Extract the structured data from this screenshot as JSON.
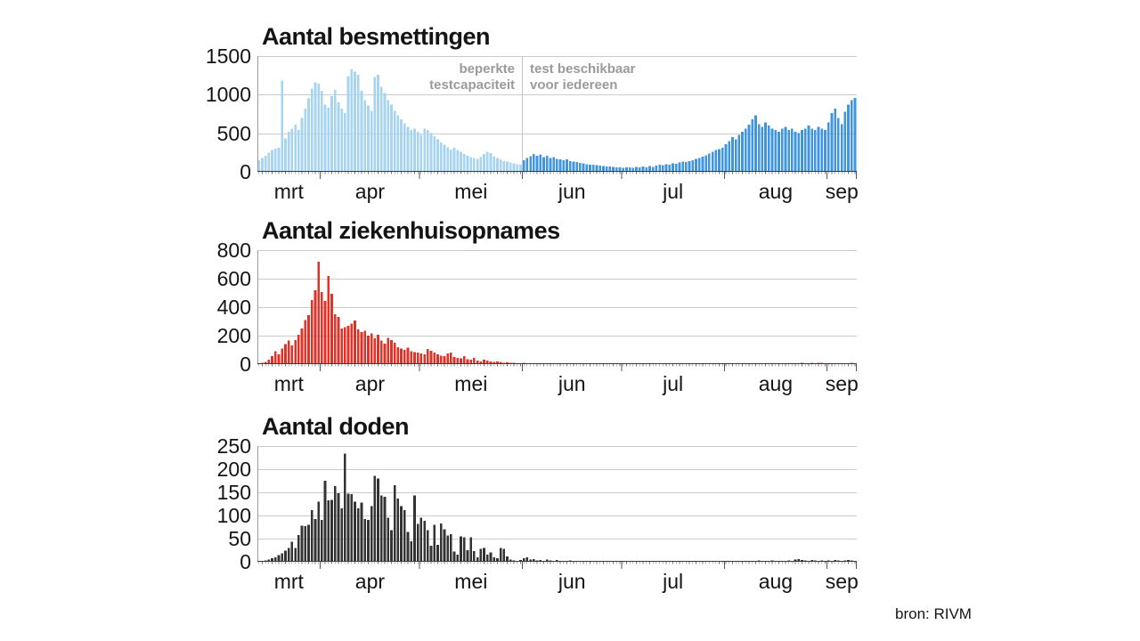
{
  "source_label": "bron: RIVM",
  "months": [
    {
      "label": "mrt",
      "days": 19
    },
    {
      "label": "apr",
      "days": 30
    },
    {
      "label": "mei",
      "days": 31
    },
    {
      "label": "jun",
      "days": 30
    },
    {
      "label": "jul",
      "days": 31
    },
    {
      "label": "aug",
      "days": 31
    },
    {
      "label": "sep",
      "days": 9
    }
  ],
  "colors": {
    "grid": "#cccccc",
    "axis_left": "#9b9b9b",
    "baseline": "#3a3a3a",
    "day_tick": "#777777",
    "month_tick": "#555555",
    "divider": "#c4c4c4",
    "annotation_text": "#9a9a9a"
  },
  "chart_data": [
    {
      "type": "bar",
      "title": "Aantal besmettingen",
      "ylim": [
        0,
        1500
      ],
      "ystep": 500,
      "yticks": [
        0,
        500,
        1000,
        1500
      ],
      "grid": true,
      "bar_color_light": "#a6d4f1",
      "bar_color_dark": "#4095df",
      "color_split_index": 80,
      "annotations": {
        "left_lines": [
          "beperkte",
          "testcapaciteit"
        ],
        "right_lines": [
          "test beschikbaar",
          "voor iedereen"
        ],
        "divider_index": 80
      },
      "values": [
        150,
        180,
        210,
        250,
        280,
        300,
        310,
        1180,
        430,
        520,
        560,
        610,
        540,
        700,
        820,
        950,
        1080,
        1160,
        1140,
        1050,
        870,
        830,
        980,
        1060,
        900,
        820,
        760,
        1240,
        1335,
        1300,
        1260,
        1050,
        930,
        860,
        790,
        1230,
        1260,
        1100,
        1020,
        930,
        870,
        790,
        730,
        680,
        630,
        580,
        540,
        560,
        520,
        480,
        560,
        540,
        500,
        460,
        420,
        380,
        350,
        320,
        290,
        310,
        280,
        260,
        230,
        210,
        190,
        180,
        170,
        190,
        230,
        260,
        240,
        200,
        180,
        160,
        140,
        130,
        120,
        110,
        100,
        95,
        150,
        180,
        200,
        230,
        210,
        225,
        190,
        205,
        180,
        190,
        170,
        160,
        150,
        160,
        140,
        130,
        125,
        115,
        110,
        100,
        95,
        90,
        85,
        80,
        75,
        70,
        68,
        65,
        60,
        55,
        50,
        55,
        60,
        50,
        65,
        55,
        70,
        60,
        75,
        65,
        80,
        90,
        85,
        100,
        95,
        110,
        105,
        120,
        130,
        125,
        140,
        150,
        165,
        180,
        195,
        215,
        235,
        260,
        280,
        295,
        310,
        360,
        400,
        450,
        420,
        480,
        520,
        560,
        610,
        680,
        730,
        620,
        580,
        640,
        600,
        560,
        540,
        520,
        560,
        580,
        540,
        560,
        520,
        500,
        540,
        560,
        600,
        560,
        540,
        580,
        560,
        540,
        640,
        760,
        820,
        700,
        620,
        780,
        870,
        930,
        960
      ]
    },
    {
      "type": "bar",
      "title": "Aantal ziekenhuisopnames",
      "ylim": [
        0,
        800
      ],
      "ystep": 200,
      "yticks": [
        0,
        200,
        400,
        600,
        800
      ],
      "grid": true,
      "bar_color": "#e23228",
      "values": [
        5,
        10,
        15,
        30,
        55,
        90,
        70,
        110,
        140,
        165,
        130,
        170,
        205,
        250,
        310,
        345,
        450,
        520,
        720,
        505,
        445,
        620,
        495,
        350,
        330,
        250,
        260,
        270,
        285,
        305,
        245,
        225,
        235,
        200,
        215,
        180,
        205,
        165,
        145,
        185,
        170,
        150,
        120,
        110,
        100,
        115,
        90,
        85,
        80,
        75,
        70,
        105,
        95,
        80,
        70,
        60,
        55,
        75,
        80,
        50,
        45,
        40,
        55,
        35,
        30,
        45,
        25,
        20,
        30,
        25,
        20,
        15,
        20,
        15,
        10,
        12,
        8,
        10,
        6,
        5,
        8,
        6,
        5,
        7,
        4,
        5,
        3,
        4,
        5,
        3,
        4,
        2,
        3,
        4,
        2,
        3,
        2,
        3,
        2,
        2,
        3,
        2,
        2,
        3,
        2,
        2,
        3,
        2,
        2,
        2,
        2,
        3,
        2,
        2,
        3,
        2,
        3,
        2,
        2,
        3,
        2,
        2,
        3,
        2,
        3,
        2,
        2,
        3,
        2,
        3,
        2,
        2,
        3,
        3,
        2,
        3,
        2,
        3,
        3,
        2,
        3,
        3,
        2,
        3,
        4,
        3,
        4,
        3,
        5,
        4,
        3,
        5,
        4,
        6,
        5,
        4,
        6,
        5,
        4,
        6,
        5,
        7,
        5,
        6,
        8,
        6,
        5,
        8,
        6,
        9,
        8,
        6,
        4,
        3,
        6,
        5,
        7,
        5,
        6,
        8,
        6
      ]
    },
    {
      "type": "bar",
      "title": "Aantal doden",
      "ylim": [
        0,
        250
      ],
      "ystep": 50,
      "yticks": [
        0,
        50,
        100,
        150,
        200,
        250
      ],
      "grid": true,
      "bar_color": "#333333",
      "values": [
        1,
        2,
        3,
        5,
        8,
        10,
        14,
        18,
        24,
        30,
        43,
        30,
        58,
        78,
        77,
        80,
        112,
        92,
        130,
        90,
        175,
        133,
        134,
        163,
        148,
        115,
        234,
        147,
        146,
        130,
        115,
        128,
        92,
        90,
        120,
        186,
        180,
        143,
        140,
        95,
        68,
        165,
        137,
        120,
        112,
        64,
        44,
        143,
        82,
        95,
        88,
        68,
        35,
        80,
        37,
        83,
        70,
        57,
        60,
        22,
        15,
        55,
        53,
        25,
        53,
        23,
        10,
        28,
        30,
        15,
        20,
        10,
        8,
        30,
        28,
        12,
        5,
        3,
        2,
        4,
        8,
        10,
        5,
        6,
        3,
        4,
        2,
        5,
        3,
        2,
        4,
        2,
        1,
        2,
        3,
        1,
        2,
        1,
        2,
        1,
        1,
        2,
        1,
        1,
        2,
        1,
        1,
        1,
        2,
        1,
        1,
        2,
        1,
        1,
        2,
        1,
        1,
        1,
        2,
        1,
        1,
        2,
        1,
        1,
        1,
        2,
        1,
        1,
        2,
        1,
        1,
        1,
        2,
        1,
        1,
        2,
        1,
        1,
        1,
        2,
        1,
        1,
        2,
        1,
        2,
        1,
        1,
        2,
        1,
        2,
        1,
        3,
        2,
        1,
        2,
        3,
        2,
        1,
        2,
        1,
        3,
        2,
        5,
        6,
        4,
        3,
        2,
        4,
        3,
        2,
        3,
        2,
        3,
        2,
        4,
        3,
        2,
        3,
        4,
        3,
        2
      ]
    }
  ]
}
